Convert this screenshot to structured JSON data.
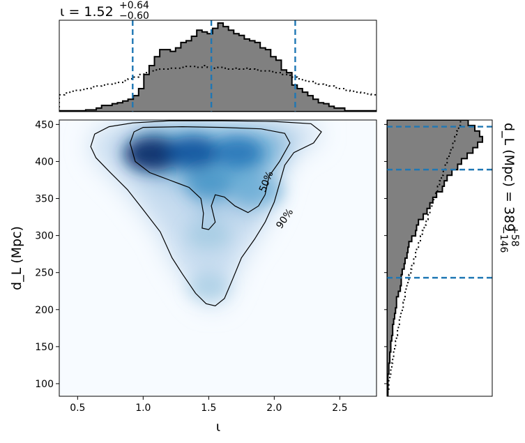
{
  "chart_data": [
    {
      "type": "heatmap",
      "role": "joint-density",
      "xlabel": "ι",
      "ylabel": "d_L (Mpc)",
      "xlim": [
        0.36,
        2.78
      ],
      "ylim": [
        83,
        456
      ],
      "xticks": [
        "0.5",
        "1.0",
        "1.5",
        "2.0",
        "2.5"
      ],
      "yticks": [
        "100",
        "150",
        "200",
        "250",
        "300",
        "350",
        "400",
        "450"
      ],
      "colormap": "Blues",
      "density_peaks": [
        {
          "x": 1.07,
          "y": 410,
          "weight": 1.0
        },
        {
          "x": 1.38,
          "y": 412,
          "weight": 0.85
        },
        {
          "x": 1.72,
          "y": 412,
          "weight": 0.65
        },
        {
          "x": 1.5,
          "y": 370,
          "weight": 0.45
        },
        {
          "x": 1.9,
          "y": 360,
          "weight": 0.35
        },
        {
          "x": 1.5,
          "y": 300,
          "weight": 0.25
        },
        {
          "x": 1.5,
          "y": 230,
          "weight": 0.12
        }
      ],
      "contours": [
        {
          "label": "50%",
          "points": [
            [
              1.0,
              446
            ],
            [
              1.3,
              447
            ],
            [
              1.6,
              446
            ],
            [
              1.9,
              444
            ],
            [
              2.08,
              438
            ],
            [
              2.12,
              425
            ],
            [
              2.04,
              400
            ],
            [
              1.96,
              380
            ],
            [
              1.93,
              355
            ],
            [
              1.88,
              340
            ],
            [
              1.8,
              331
            ],
            [
              1.7,
              340
            ],
            [
              1.62,
              352
            ],
            [
              1.55,
              355
            ],
            [
              1.52,
              340
            ],
            [
              1.55,
              318
            ],
            [
              1.5,
              308
            ],
            [
              1.45,
              310
            ],
            [
              1.46,
              330
            ],
            [
              1.44,
              350
            ],
            [
              1.35,
              365
            ],
            [
              1.2,
              375
            ],
            [
              1.05,
              385
            ],
            [
              0.94,
              400
            ],
            [
              0.9,
              425
            ],
            [
              0.93,
              440
            ],
            [
              1.0,
              446
            ]
          ]
        },
        {
          "label": "90%",
          "points": [
            [
              0.92,
              452
            ],
            [
              1.2,
              455
            ],
            [
              1.6,
              455
            ],
            [
              2.0,
              454
            ],
            [
              2.28,
              451
            ],
            [
              2.36,
              440
            ],
            [
              2.3,
              425
            ],
            [
              2.15,
              412
            ],
            [
              2.08,
              395
            ],
            [
              2.04,
              370
            ],
            [
              2.0,
              345
            ],
            [
              1.93,
              318
            ],
            [
              1.85,
              295
            ],
            [
              1.75,
              270
            ],
            [
              1.68,
              240
            ],
            [
              1.62,
              215
            ],
            [
              1.55,
              205
            ],
            [
              1.48,
              208
            ],
            [
              1.4,
              222
            ],
            [
              1.3,
              248
            ],
            [
              1.22,
              270
            ],
            [
              1.13,
              305
            ],
            [
              1.0,
              335
            ],
            [
              0.88,
              362
            ],
            [
              0.75,
              385
            ],
            [
              0.64,
              405
            ],
            [
              0.6,
              420
            ],
            [
              0.63,
              437
            ],
            [
              0.74,
              447
            ],
            [
              0.92,
              452
            ]
          ]
        }
      ]
    },
    {
      "type": "bar",
      "role": "marginal-histogram-x",
      "title": "ι = 1.52",
      "title_sup": "+0.64",
      "title_sub": "−0.60",
      "bin_edges_x": [
        0.36,
        2.78
      ],
      "posterior": [
        0.01,
        0.01,
        0.01,
        0.01,
        0.01,
        0.02,
        0.02,
        0.04,
        0.07,
        0.07,
        0.09,
        0.1,
        0.12,
        0.14,
        0.18,
        0.26,
        0.42,
        0.52,
        0.62,
        0.7,
        0.7,
        0.68,
        0.72,
        0.78,
        0.8,
        0.85,
        0.92,
        0.9,
        0.88,
        0.94,
        1.0,
        0.96,
        0.92,
        0.88,
        0.86,
        0.82,
        0.8,
        0.78,
        0.72,
        0.7,
        0.62,
        0.58,
        0.47,
        0.44,
        0.3,
        0.26,
        0.22,
        0.18,
        0.14,
        0.1,
        0.09,
        0.06,
        0.04,
        0.04,
        0.01,
        0.01,
        0.01,
        0.01,
        0.01,
        0.01
      ],
      "prior": [
        0.19,
        0.21,
        0.23,
        0.24,
        0.25,
        0.26,
        0.28,
        0.29,
        0.3,
        0.31,
        0.32,
        0.33,
        0.35,
        0.37,
        0.39,
        0.42,
        0.44,
        0.46,
        0.47,
        0.48,
        0.48,
        0.49,
        0.49,
        0.5,
        0.51,
        0.51,
        0.5,
        0.52,
        0.5,
        0.49,
        0.5,
        0.49,
        0.48,
        0.49,
        0.48,
        0.49,
        0.48,
        0.47,
        0.46,
        0.46,
        0.45,
        0.44,
        0.42,
        0.41,
        0.39,
        0.37,
        0.35,
        0.34,
        0.32,
        0.31,
        0.3,
        0.29,
        0.27,
        0.26,
        0.24,
        0.23,
        0.22,
        0.21,
        0.2,
        0.19
      ],
      "credible_lines": [
        0.92,
        1.52,
        2.16
      ]
    },
    {
      "type": "bar",
      "role": "marginal-histogram-y",
      "label": "d_L (Mpc) = 389",
      "label_sup": "+58",
      "label_sub": "−146",
      "bin_edges_y": [
        83,
        456
      ],
      "posterior": [
        0.01,
        0.01,
        0.01,
        0.01,
        0.02,
        0.02,
        0.03,
        0.03,
        0.04,
        0.04,
        0.05,
        0.06,
        0.06,
        0.07,
        0.08,
        0.09,
        0.1,
        0.1,
        0.12,
        0.14,
        0.15,
        0.15,
        0.16,
        0.18,
        0.19,
        0.21,
        0.22,
        0.23,
        0.26,
        0.3,
        0.31,
        0.33,
        0.38,
        0.42,
        0.45,
        0.48,
        0.52,
        0.58,
        0.6,
        0.63,
        0.68,
        0.74,
        0.78,
        0.84,
        0.9,
        0.95,
        1.0,
        0.97,
        0.92,
        0.85
      ],
      "prior": [
        0.01,
        0.02,
        0.02,
        0.03,
        0.04,
        0.05,
        0.06,
        0.07,
        0.08,
        0.09,
        0.1,
        0.11,
        0.12,
        0.13,
        0.14,
        0.16,
        0.17,
        0.18,
        0.19,
        0.2,
        0.22,
        0.23,
        0.25,
        0.26,
        0.28,
        0.3,
        0.31,
        0.33,
        0.35,
        0.37,
        0.39,
        0.41,
        0.43,
        0.45,
        0.47,
        0.49,
        0.51,
        0.53,
        0.55,
        0.57,
        0.59,
        0.61,
        0.63,
        0.65,
        0.67,
        0.69,
        0.71,
        0.73,
        0.75,
        0.77
      ],
      "credible_lines": [
        243,
        389,
        447
      ]
    }
  ]
}
